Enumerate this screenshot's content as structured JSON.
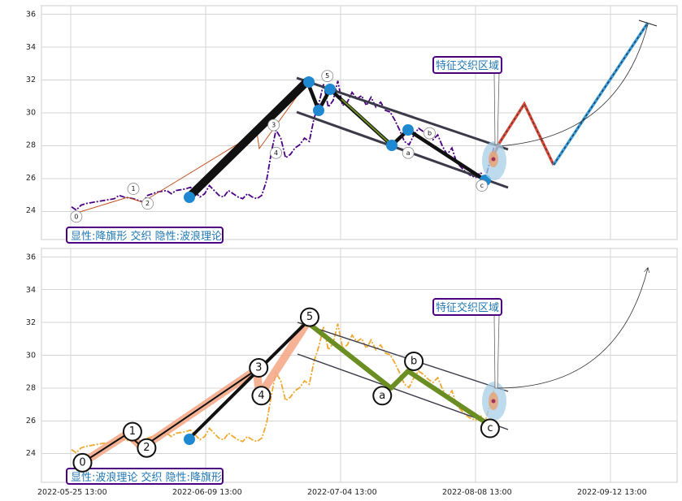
{
  "chart_data": [
    {
      "type": "line",
      "panel": "top",
      "ylim": [
        22.2,
        36.5
      ],
      "yticks": [
        24,
        26,
        28,
        30,
        32,
        34,
        36
      ],
      "grid": true,
      "price_series": {
        "color": "#4b0082",
        "style": "dash-dot",
        "points": [
          [
            0,
            24.2
          ],
          [
            1,
            24.0
          ],
          [
            2,
            24.3
          ],
          [
            3,
            24.4
          ],
          [
            5,
            24.5
          ],
          [
            7,
            24.6
          ],
          [
            9,
            24.7
          ],
          [
            10,
            24.9
          ],
          [
            11,
            24.8
          ],
          [
            13,
            24.7
          ],
          [
            14,
            24.6
          ],
          [
            15,
            24.5
          ],
          [
            16,
            24.9
          ],
          [
            18,
            25.1
          ],
          [
            20,
            25.2
          ],
          [
            21,
            25.0
          ],
          [
            22,
            25.2
          ],
          [
            24,
            25.3
          ],
          [
            25,
            25.4
          ],
          [
            26,
            25.1
          ],
          [
            27,
            24.8
          ],
          [
            28,
            25.0
          ],
          [
            29,
            25.5
          ],
          [
            30,
            25.2
          ],
          [
            31,
            24.9
          ],
          [
            32,
            24.8
          ],
          [
            33,
            25.2
          ],
          [
            34,
            25.0
          ],
          [
            35,
            24.8
          ],
          [
            36,
            24.7
          ],
          [
            37,
            25.0
          ],
          [
            38,
            24.8
          ],
          [
            39,
            24.7
          ],
          [
            40,
            24.9
          ],
          [
            41,
            25.8
          ],
          [
            42,
            27.5
          ],
          [
            43,
            28.9
          ],
          [
            44,
            28.4
          ],
          [
            45,
            27.2
          ],
          [
            46,
            27.4
          ],
          [
            47,
            27.8
          ],
          [
            48,
            28.0
          ],
          [
            49,
            28.4
          ],
          [
            50,
            28.2
          ],
          [
            51,
            29.6
          ],
          [
            52,
            30.5
          ],
          [
            53,
            31.7
          ],
          [
            54,
            30.3
          ],
          [
            55,
            30.7
          ],
          [
            56,
            31.9
          ],
          [
            57,
            30.4
          ],
          [
            58,
            30.6
          ],
          [
            59,
            31.2
          ],
          [
            60,
            30.8
          ],
          [
            61,
            31.0
          ],
          [
            62,
            30.4
          ],
          [
            63,
            30.9
          ],
          [
            64,
            30.3
          ],
          [
            65,
            30.6
          ],
          [
            66,
            30.1
          ],
          [
            67,
            30.0
          ],
          [
            68,
            29.5
          ],
          [
            69,
            28.9
          ],
          [
            70,
            28.2
          ],
          [
            71,
            28.0
          ],
          [
            72,
            28.6
          ],
          [
            73,
            29.0
          ],
          [
            74,
            28.8
          ],
          [
            75,
            28.5
          ],
          [
            76,
            28.3
          ],
          [
            77,
            28.6
          ],
          [
            78,
            27.9
          ],
          [
            79,
            27.4
          ],
          [
            80,
            27.8
          ],
          [
            81,
            26.9
          ],
          [
            82,
            26.6
          ],
          [
            83,
            26.3
          ],
          [
            84,
            26.1
          ],
          [
            85,
            26.0
          ],
          [
            86,
            26.3
          ],
          [
            87,
            25.9
          ],
          [
            88,
            27.0
          ],
          [
            89,
            28.0
          ]
        ]
      },
      "wave_labels": [
        {
          "text": "0",
          "x": 1,
          "y": 23.6
        },
        {
          "text": "1",
          "x": 13,
          "y": 25.3
        },
        {
          "text": "2",
          "x": 16,
          "y": 24.4
        },
        {
          "text": "3",
          "x": 42.5,
          "y": 29.2
        },
        {
          "text": "4",
          "x": 43,
          "y": 27.5
        },
        {
          "text": "5",
          "x": 53.8,
          "y": 32.2
        },
        {
          "text": "a",
          "x": 70.8,
          "y": 27.5
        },
        {
          "text": "b",
          "x": 75.3,
          "y": 28.7
        },
        {
          "text": "c",
          "x": 86.3,
          "y": 25.5
        }
      ],
      "legend_box": "显性:降旗形 交织 隐性:波浪理论",
      "annotation": "特征交织区域"
    },
    {
      "type": "line",
      "panel": "bottom",
      "ylim": [
        22.2,
        36.5
      ],
      "yticks": [
        24,
        26,
        28,
        30,
        32,
        34,
        36
      ],
      "xticks": [
        "2022-05-25 13:00",
        "2022-06-09 13:00",
        "2022-07-04 13:00",
        "2022-08-08 13:00",
        "2022-09-12 13:00"
      ],
      "grid": true,
      "price_series": {
        "color": "#f0a830",
        "style": "dash-dot"
      },
      "wave_labels": [
        {
          "text": "0",
          "x": 1,
          "y": 23.4
        },
        {
          "text": "1",
          "x": 10.5,
          "y": 25.3
        },
        {
          "text": "2",
          "x": 13.2,
          "y": 24.3
        },
        {
          "text": "3",
          "x": 34.5,
          "y": 29.2
        },
        {
          "text": "4",
          "x": 35,
          "y": 27.5
        },
        {
          "text": "5",
          "x": 44.2,
          "y": 32.3
        },
        {
          "text": "a",
          "x": 58,
          "y": 27.5
        },
        {
          "text": "b",
          "x": 64,
          "y": 29.6
        },
        {
          "text": "c",
          "x": 78.5,
          "y": 25.5
        }
      ],
      "legend_box": "显性:波浪理论 交织 隐性:降旗形",
      "annotation": "特征交织区域"
    }
  ]
}
